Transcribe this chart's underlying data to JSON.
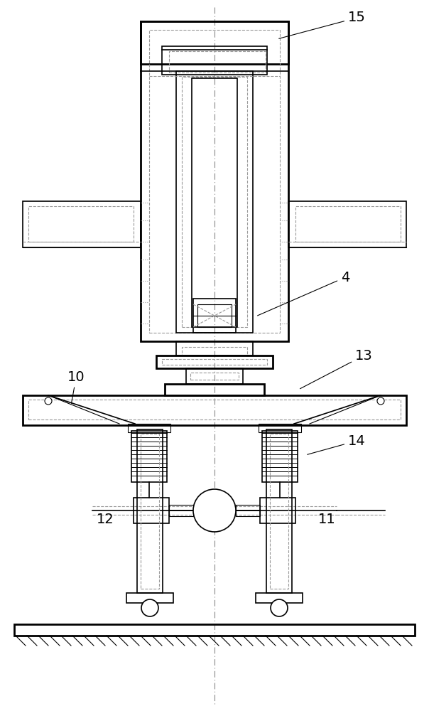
{
  "bg_color": "#ffffff",
  "line_color": "#000000",
  "dashed_color": "#999999",
  "figsize": [
    6.04,
    10.0
  ],
  "dpi": 100
}
